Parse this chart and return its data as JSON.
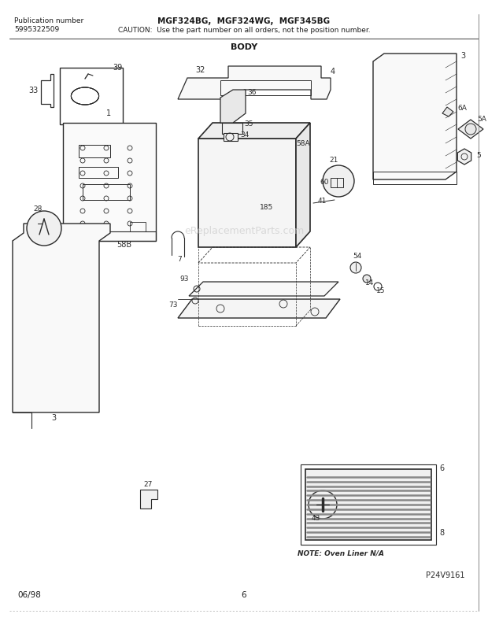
{
  "title": "BODY",
  "pub_number_label": "Publication number",
  "pub_number": "5995322509",
  "model_numbers": "MGF324BG,  MGF324WG,  MGF345BG",
  "caution": "CAUTION:  Use the part number on all orders, not the position number.",
  "footer_left": "06/98",
  "footer_center": "6",
  "footer_right": "P24V9161",
  "note_text": "NOTE: Oven Liner N/A",
  "watermark": "eReplacementParts.com",
  "bg_color": "#ffffff",
  "text_color": "#1a1a1a",
  "dc": "#2a2a2a",
  "fig_width": 6.2,
  "fig_height": 7.94,
  "dpi": 100
}
